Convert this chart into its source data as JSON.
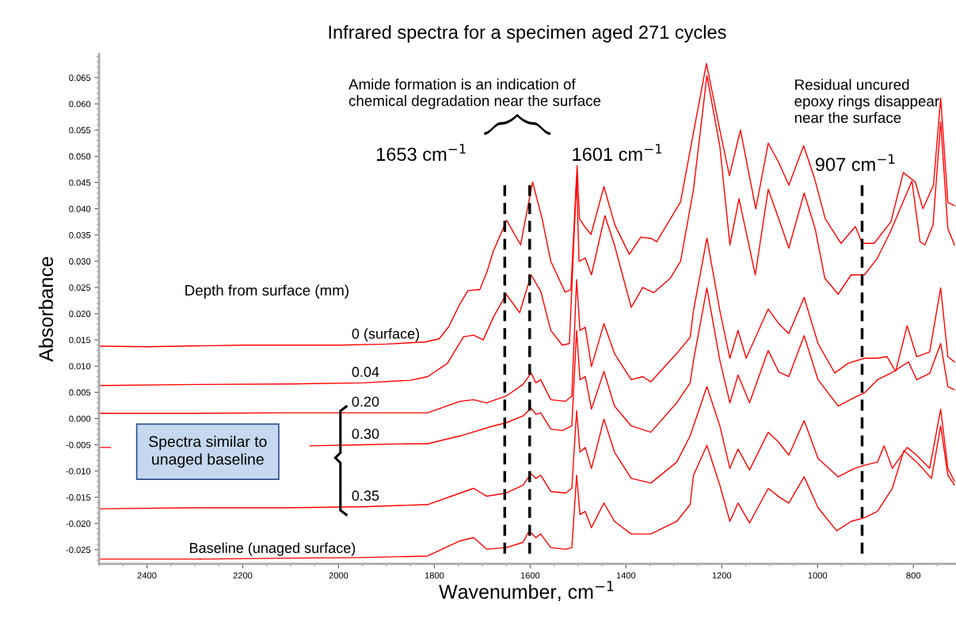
{
  "chart_data": {
    "type": "line",
    "title": "Infrared spectra for a specimen aged 271 cycles",
    "xlabel": "Wavenumber, cm$^{−1}$",
    "ylabel": "Absorbance",
    "xlim": [
      2500,
      713
    ],
    "ylim": [
      -0.0277,
      0.0695
    ],
    "xticks": [
      2400,
      2200,
      2000,
      1800,
      1600,
      1400,
      1200,
      1000,
      800
    ],
    "yticks": [
      {
        "value": -0.025,
        "label": "-0.025"
      },
      {
        "value": -0.02,
        "label": "-0.020"
      },
      {
        "value": -0.015,
        "label": "-0.015"
      },
      {
        "value": -0.01,
        "label": "-0.010"
      },
      {
        "value": -0.005,
        "label": "-0.005"
      },
      {
        "value": 0,
        "label": "0.000"
      },
      {
        "value": 0.005,
        "label": "0.005"
      },
      {
        "value": 0.01,
        "label": "0.010"
      },
      {
        "value": 0.015,
        "label": "0.015"
      },
      {
        "value": 0.02,
        "label": "0.020"
      },
      {
        "value": 0.025,
        "label": "0.025"
      },
      {
        "value": 0.03,
        "label": "0.030"
      },
      {
        "value": 0.035,
        "label": "0.035"
      },
      {
        "value": 0.04,
        "label": "0.040"
      },
      {
        "value": 0.045,
        "label": "0.045"
      },
      {
        "value": 0.05,
        "label": "0.050"
      },
      {
        "value": 0.055,
        "label": "0.055"
      },
      {
        "value": 0.06,
        "label": "0.060"
      },
      {
        "value": 0.065,
        "label": "0.065"
      }
    ],
    "legend": false,
    "series": [
      {
        "name": "0 (surface)",
        "color": "#ff0000",
        "x": [
          2500,
          2400,
          2200,
          2000,
          1900,
          1820,
          1790,
          1770,
          1747,
          1730,
          1705,
          1690,
          1677,
          1649,
          1620,
          1595,
          1575,
          1557,
          1527,
          1515,
          1502,
          1497,
          1486,
          1473,
          1446,
          1423,
          1393,
          1369,
          1346,
          1336,
          1286,
          1258,
          1232,
          1204,
          1184,
          1161,
          1129,
          1103,
          1081,
          1060,
          1029,
          1006,
          984,
          951,
          921,
          907,
          882,
          847,
          821,
          796,
          780,
          758,
          743,
          728,
          714
        ],
        "values": [
          0.0138,
          0.0137,
          0.014,
          0.014,
          0.0142,
          0.0146,
          0.0152,
          0.0175,
          0.0218,
          0.0244,
          0.0246,
          0.028,
          0.0319,
          0.0378,
          0.0331,
          0.0451,
          0.0381,
          0.03,
          0.0241,
          0.0246,
          0.0482,
          0.0381,
          0.0366,
          0.0351,
          0.0442,
          0.0369,
          0.0313,
          0.0346,
          0.0343,
          0.0337,
          0.0413,
          0.055,
          0.0677,
          0.055,
          0.0463,
          0.055,
          0.04,
          0.0525,
          0.0488,
          0.0445,
          0.052,
          0.0457,
          0.0381,
          0.0334,
          0.0366,
          0.0334,
          0.0334,
          0.0375,
          0.0469,
          0.0451,
          0.04,
          0.0445,
          0.0611,
          0.0412,
          0.0406
        ]
      },
      {
        "name": "0.04",
        "color": "#ff0000",
        "x": [
          2500,
          2300,
          2100,
          1950,
          1850,
          1814,
          1773,
          1739,
          1718,
          1698,
          1677,
          1650,
          1622,
          1598,
          1578,
          1557,
          1533,
          1518,
          1503,
          1498,
          1485,
          1472,
          1444,
          1424,
          1389,
          1365,
          1342,
          1307,
          1286,
          1259,
          1231,
          1204,
          1183,
          1164,
          1130,
          1103,
          1081,
          1060,
          1028,
          1005,
          985,
          957,
          930,
          902,
          875,
          848,
          803,
          786,
          776,
          759,
          743,
          728,
          714
        ],
        "values": [
          0.0063,
          0.0065,
          0.0066,
          0.0068,
          0.0073,
          0.008,
          0.0105,
          0.0156,
          0.0159,
          0.015,
          0.0193,
          0.0237,
          0.0202,
          0.0274,
          0.0243,
          0.0168,
          0.014,
          0.0143,
          0.046,
          0.03,
          0.0306,
          0.0274,
          0.0387,
          0.0331,
          0.0212,
          0.025,
          0.024,
          0.0268,
          0.03,
          0.0437,
          0.0654,
          0.0519,
          0.0331,
          0.0419,
          0.0274,
          0.0437,
          0.0381,
          0.0325,
          0.043,
          0.0362,
          0.0268,
          0.0237,
          0.0274,
          0.0274,
          0.0306,
          0.0356,
          0.0453,
          0.0337,
          0.0331,
          0.0369,
          0.0566,
          0.0362,
          0.0331
        ]
      },
      {
        "name": "0.20",
        "color": "#ff0000",
        "x": [
          2500,
          2300,
          2100,
          1950,
          1814,
          1746,
          1718,
          1691,
          1650,
          1615,
          1598,
          1588,
          1578,
          1557,
          1526,
          1513,
          1503,
          1496,
          1485,
          1472,
          1446,
          1424,
          1389,
          1365,
          1348,
          1294,
          1266,
          1259,
          1231,
          1204,
          1183,
          1166,
          1149,
          1103,
          1081,
          1060,
          1028,
          999,
          964,
          937,
          902,
          875,
          855,
          837,
          813,
          793,
          766,
          743,
          728,
          714
        ],
        "values": [
          0.001,
          0.001,
          0.0011,
          0.0011,
          0.0011,
          0.0033,
          0.0036,
          0.003,
          0.0043,
          0.0065,
          0.0087,
          0.0068,
          0.0074,
          0.0036,
          0.0033,
          0.0043,
          0.0265,
          0.0168,
          0.0174,
          0.0099,
          0.0181,
          0.0124,
          0.0074,
          0.008,
          0.007,
          0.0124,
          0.0155,
          0.0206,
          0.0344,
          0.0206,
          0.0115,
          0.0168,
          0.0115,
          0.0209,
          0.0181,
          0.0162,
          0.0231,
          0.0143,
          0.0087,
          0.0105,
          0.0115,
          0.0115,
          0.0118,
          0.009,
          0.0177,
          0.0118,
          0.0127,
          0.0249,
          0.0118,
          0.0108
        ]
      },
      {
        "name": "0.30",
        "color": "#ff0000",
        "x": [
          2500,
          2476,
          2470,
          2060,
          1950,
          1850,
          1814,
          1746,
          1677,
          1650,
          1615,
          1598,
          1588,
          1578,
          1557,
          1533,
          1513,
          1503,
          1496,
          1485,
          1472,
          1446,
          1424,
          1389,
          1348,
          1294,
          1266,
          1259,
          1231,
          1204,
          1183,
          1166,
          1142,
          1103,
          1081,
          1060,
          1028,
          999,
          957,
          923,
          902,
          875,
          848,
          810,
          793,
          766,
          743,
          728,
          714
        ],
        "values": [
          -0.0055,
          -0.0055,
          null,
          -0.0052,
          -0.005,
          -0.0048,
          -0.0048,
          -0.0033,
          -0.0014,
          -0.0008,
          0.0005,
          0.002,
          0.0008,
          0.0011,
          -0.002,
          -0.0023,
          -0.0014,
          0.0168,
          0.0074,
          0.008,
          0.0018,
          0.009,
          0.0024,
          -0.0014,
          -0.0026,
          0.003,
          0.0068,
          0.0111,
          0.0249,
          0.0111,
          0.003,
          0.0083,
          0.003,
          0.013,
          0.0089,
          0.008,
          0.0158,
          0.0074,
          0.0024,
          0.004,
          0.0049,
          0.0074,
          0.0086,
          0.0108,
          0.0074,
          0.0086,
          0.0143,
          0.0061,
          0.0055
        ]
      },
      {
        "name": "0.35",
        "color": "#ff0000",
        "x": [
          2500,
          2300,
          2100,
          1950,
          1814,
          1746,
          1718,
          1691,
          1650,
          1615,
          1598,
          1588,
          1578,
          1557,
          1526,
          1513,
          1503,
          1496,
          1485,
          1472,
          1446,
          1424,
          1389,
          1348,
          1294,
          1266,
          1259,
          1231,
          1204,
          1183,
          1166,
          1142,
          1103,
          1081,
          1060,
          1028,
          999,
          957,
          923,
          902,
          875,
          861,
          844,
          813,
          793,
          766,
          743,
          728,
          714
        ],
        "values": [
          -0.0172,
          -0.017,
          -0.017,
          -0.0168,
          -0.0164,
          -0.0142,
          -0.0133,
          -0.0148,
          -0.0142,
          -0.0127,
          -0.0105,
          -0.0114,
          -0.0108,
          -0.0139,
          -0.0142,
          -0.0133,
          0.0015,
          -0.0064,
          -0.0055,
          -0.0095,
          -0.0001,
          -0.0064,
          -0.0114,
          -0.0123,
          -0.0083,
          -0.0033,
          -0.0014,
          0.0061,
          -0.0014,
          -0.0095,
          -0.0058,
          -0.0098,
          -0.0026,
          -0.0045,
          -0.007,
          -0.0004,
          -0.0076,
          -0.0111,
          -0.0095,
          -0.0089,
          -0.0083,
          -0.0052,
          -0.0095,
          -0.0055,
          -0.007,
          -0.0095,
          0.0018,
          -0.0095,
          -0.012
        ]
      },
      {
        "name": "Baseline (unaged surface)",
        "color": "#ff0000",
        "x": [
          2500,
          2300,
          2100,
          1950,
          1814,
          1746,
          1718,
          1691,
          1650,
          1615,
          1602,
          1588,
          1578,
          1557,
          1526,
          1513,
          1503,
          1496,
          1485,
          1472,
          1446,
          1424,
          1389,
          1348,
          1294,
          1266,
          1259,
          1231,
          1204,
          1183,
          1166,
          1142,
          1103,
          1081,
          1060,
          1028,
          999,
          960,
          930,
          902,
          875,
          844,
          820,
          793,
          762,
          743,
          728,
          714
        ],
        "values": [
          -0.0268,
          -0.0268,
          -0.0266,
          -0.0265,
          -0.0262,
          -0.0233,
          -0.0227,
          -0.0249,
          -0.0246,
          -0.0236,
          -0.0214,
          -0.0227,
          -0.022,
          -0.0246,
          -0.0249,
          -0.0246,
          -0.0108,
          -0.0183,
          -0.0177,
          -0.0208,
          -0.0161,
          -0.0196,
          -0.022,
          -0.022,
          -0.0196,
          -0.0164,
          -0.0108,
          -0.0051,
          -0.0127,
          -0.0196,
          -0.0161,
          -0.0199,
          -0.0133,
          -0.0149,
          -0.0161,
          -0.0111,
          -0.017,
          -0.0214,
          -0.0196,
          -0.0189,
          -0.0177,
          -0.0133,
          -0.0061,
          -0.0083,
          -0.0114,
          -0.0014,
          -0.0108,
          -0.0127
        ]
      }
    ],
    "ref_lines": [
      {
        "axis": "x",
        "value": 1653,
        "label": "1653 cm$^{−1}$",
        "color": "#000000",
        "line_style": "dashed"
      },
      {
        "axis": "x",
        "value": 1601,
        "label": "1601 cm$^{−1}$",
        "color": "#000000",
        "line_style": "dashed"
      },
      {
        "axis": "x",
        "value": 907,
        "label": "907 cm$^{−1}$",
        "color": "#000000",
        "line_style": "dashed"
      }
    ],
    "annotations": [
      "Depth from surface (mm)",
      "Amide formation is an indication of\nchemical degradation near the surface",
      "Residual uncured\nepoxy rings disappear\nnear the surface",
      "Spectra similar to\nunaged baseline"
    ]
  }
}
